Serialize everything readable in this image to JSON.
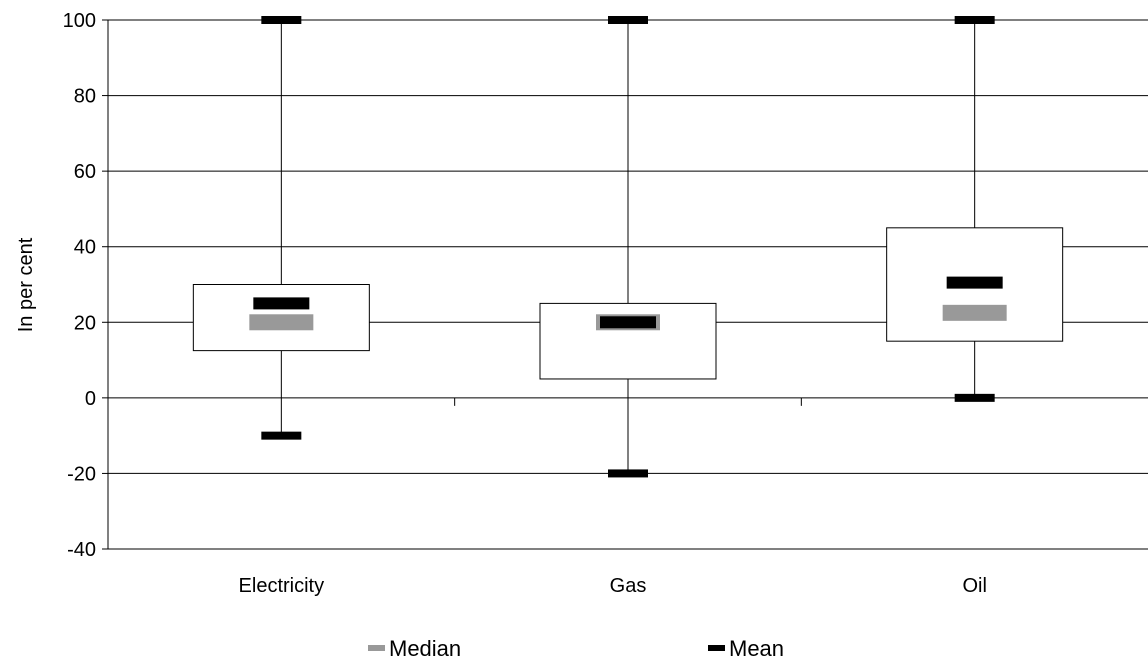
{
  "chart_data": {
    "type": "box",
    "title": "",
    "xlabel": "",
    "ylabel": "In per cent",
    "ylim": [
      -40,
      100
    ],
    "yticks": [
      -40,
      -20,
      0,
      20,
      40,
      60,
      80,
      100
    ],
    "grid": true,
    "legend_position": "bottom",
    "categories": [
      "Electricity",
      "Gas",
      "Oil"
    ],
    "boxes": [
      {
        "category": "Electricity",
        "whisker_low": -10,
        "q1": 12.5,
        "median": 20,
        "mean": 25,
        "q3": 30,
        "whisker_high": 100
      },
      {
        "category": "Gas",
        "whisker_low": -20,
        "q1": 5,
        "median": 20,
        "mean": 20,
        "q3": 25,
        "whisker_high": 100
      },
      {
        "category": "Oil",
        "whisker_low": 0,
        "q1": 15,
        "median": 22.5,
        "mean": 30.5,
        "q3": 45,
        "whisker_high": 100
      }
    ],
    "legend": [
      {
        "name": "Median",
        "color": "#999999"
      },
      {
        "name": "Mean",
        "color": "#000000"
      }
    ]
  }
}
